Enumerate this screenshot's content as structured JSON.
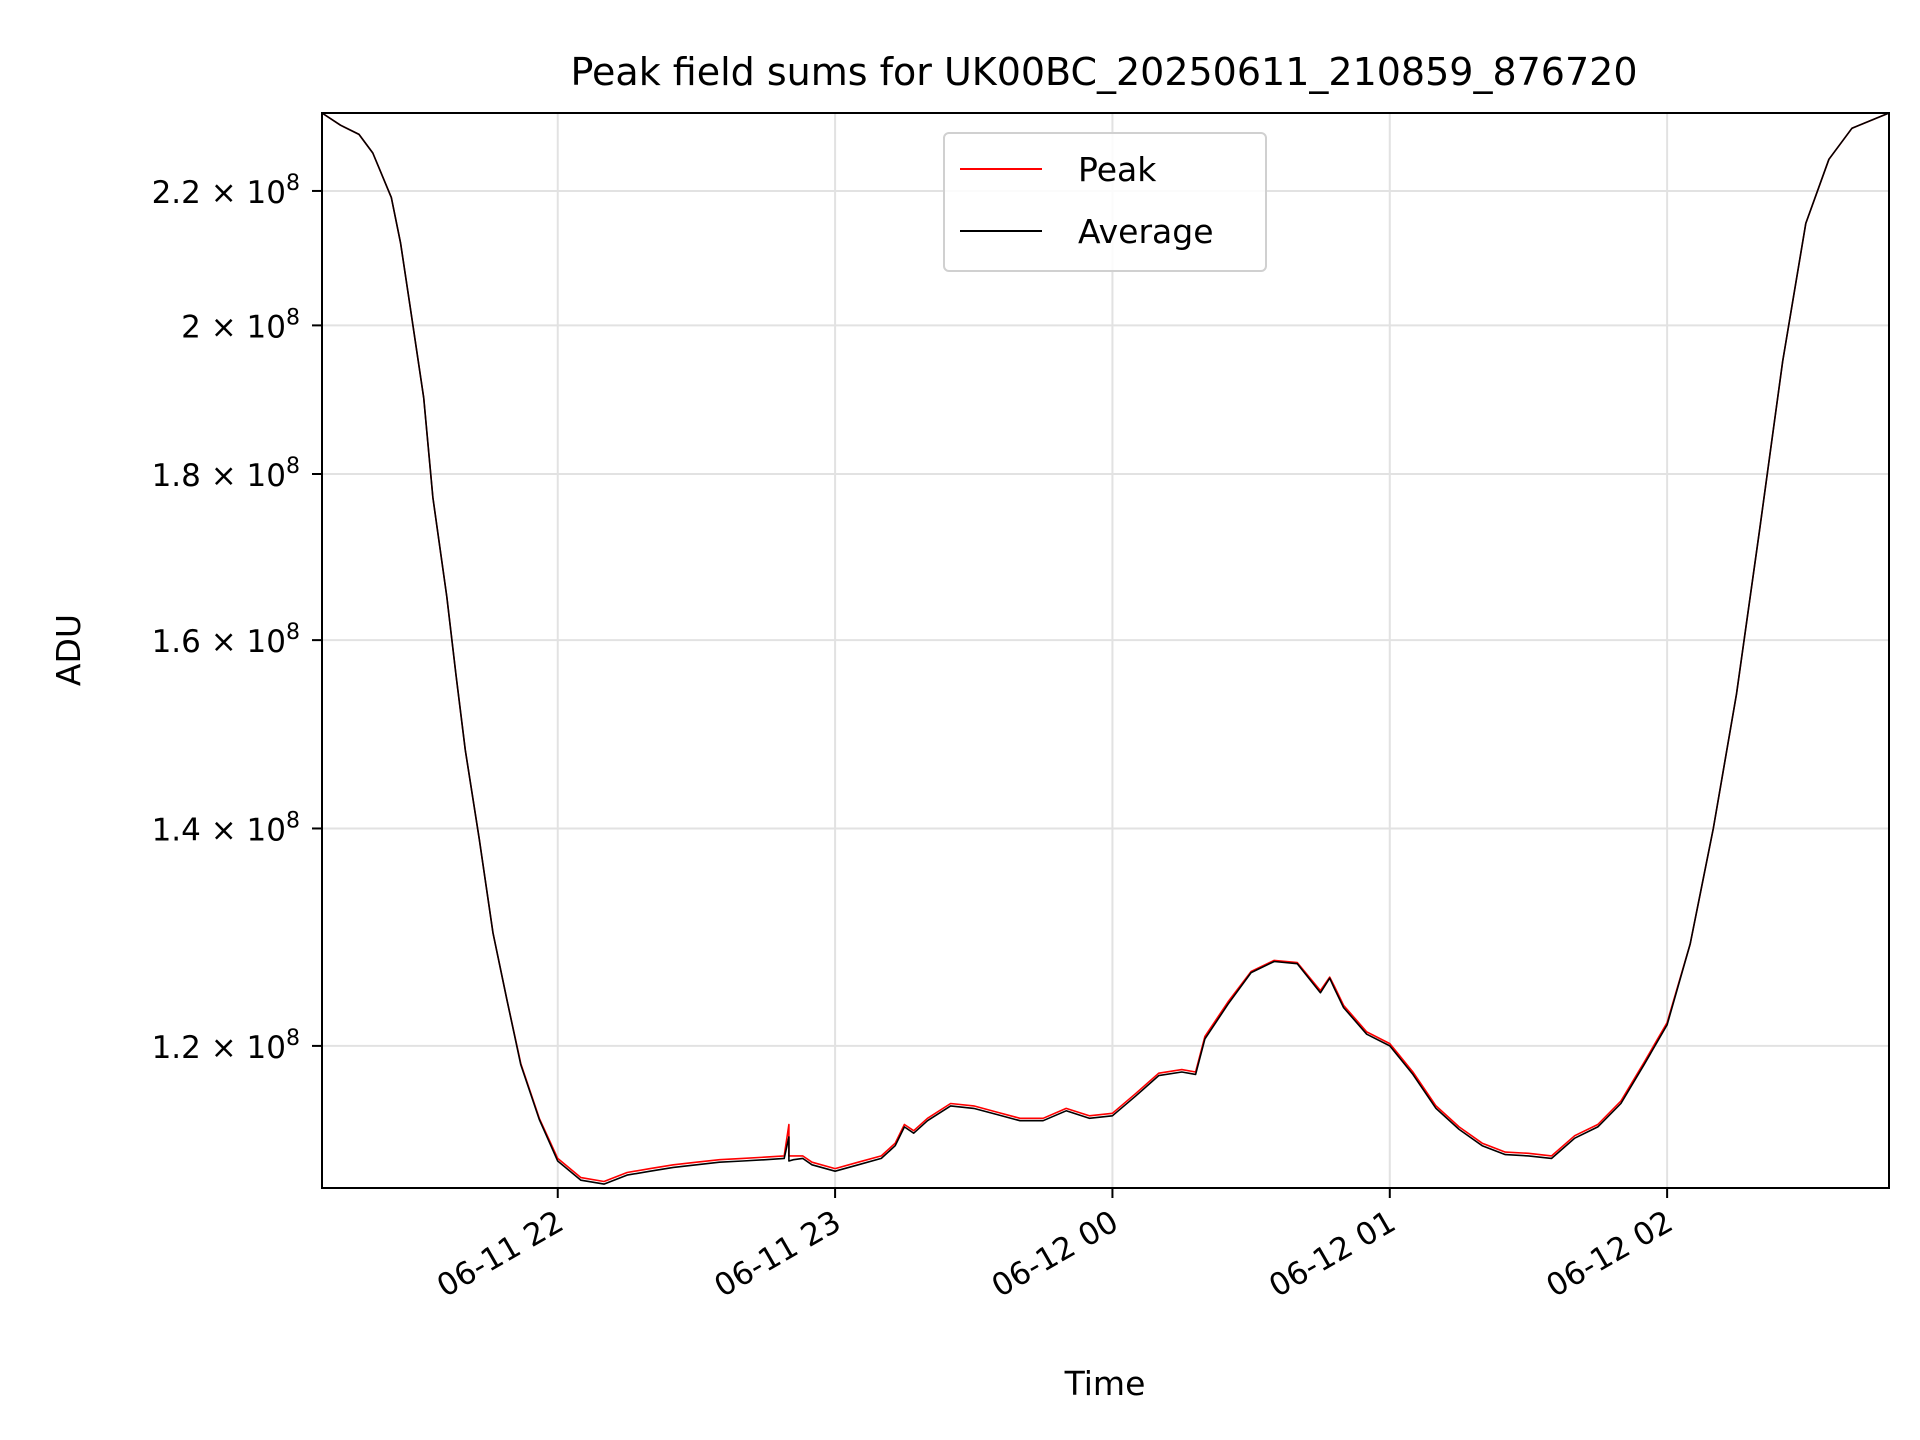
{
  "chart_data": {
    "type": "line",
    "title": "Peak field sums for UK00BC_20250611_210859_876720",
    "xlabel": "Time",
    "ylabel": "ADU",
    "y_scale": "log",
    "ylim": [
      108500000,
      232500000
    ],
    "xlim": [
      "2025-06-11 21:09",
      "2025-06-12 02:48"
    ],
    "x_ticks": [
      "2025-06-11 22:00",
      "2025-06-11 23:00",
      "2025-06-12 00:00",
      "2025-06-12 01:00",
      "2025-06-12 02:00"
    ],
    "x_tick_labels": [
      "06-11 22",
      "06-11 23",
      "06-12 00",
      "06-12 01",
      "06-12 02"
    ],
    "y_ticks": [
      120000000,
      140000000,
      160000000,
      180000000,
      200000000,
      220000000
    ],
    "y_tick_labels": [
      {
        "mantissa": "1.2",
        "exp": "8"
      },
      {
        "mantissa": "1.4",
        "exp": "8"
      },
      {
        "mantissa": "1.6",
        "exp": "8"
      },
      {
        "mantissa": "1.8",
        "exp": "8"
      },
      {
        "mantissa": "2",
        "exp": "8"
      },
      {
        "mantissa": "2.2",
        "exp": "8"
      }
    ],
    "times_label": "× 10",
    "grid": true,
    "legend_position": "upper center",
    "series": [
      {
        "name": "Peak",
        "color": "#ff0000",
        "x": [
          "2025-06-11 21:09",
          "2025-06-11 21:13",
          "2025-06-11 21:17",
          "2025-06-11 21:20",
          "2025-06-11 21:24",
          "2025-06-11 21:26",
          "2025-06-11 21:28",
          "2025-06-11 21:31",
          "2025-06-11 21:33",
          "2025-06-11 21:36",
          "2025-06-11 21:38",
          "2025-06-11 21:40",
          "2025-06-11 21:43",
          "2025-06-11 21:46",
          "2025-06-11 21:49",
          "2025-06-11 21:52",
          "2025-06-11 21:56",
          "2025-06-11 22:00",
          "2025-06-11 22:05",
          "2025-06-11 22:10",
          "2025-06-11 22:15",
          "2025-06-11 22:20",
          "2025-06-11 22:25",
          "2025-06-11 22:30",
          "2025-06-11 22:35",
          "2025-06-11 22:40",
          "2025-06-11 22:45",
          "2025-06-11 22:49",
          "2025-06-11 22:50",
          "2025-06-11 22:50",
          "2025-06-11 22:51",
          "2025-06-11 22:53",
          "2025-06-11 22:55",
          "2025-06-11 23:00",
          "2025-06-11 23:05",
          "2025-06-11 23:10",
          "2025-06-11 23:13",
          "2025-06-11 23:15",
          "2025-06-11 23:17",
          "2025-06-11 23:20",
          "2025-06-11 23:25",
          "2025-06-11 23:30",
          "2025-06-11 23:35",
          "2025-06-11 23:40",
          "2025-06-11 23:45",
          "2025-06-11 23:50",
          "2025-06-11 23:55",
          "2025-06-12 00:00",
          "2025-06-12 00:05",
          "2025-06-12 00:10",
          "2025-06-12 00:15",
          "2025-06-12 00:18",
          "2025-06-12 00:20",
          "2025-06-12 00:25",
          "2025-06-12 00:30",
          "2025-06-12 00:35",
          "2025-06-12 00:40",
          "2025-06-12 00:45",
          "2025-06-12 00:47",
          "2025-06-12 00:48",
          "2025-06-12 00:50",
          "2025-06-12 00:55",
          "2025-06-12 01:00",
          "2025-06-12 01:05",
          "2025-06-12 01:10",
          "2025-06-12 01:15",
          "2025-06-12 01:20",
          "2025-06-12 01:25",
          "2025-06-12 01:30",
          "2025-06-12 01:35",
          "2025-06-12 01:40",
          "2025-06-12 01:45",
          "2025-06-12 01:50",
          "2025-06-12 01:55",
          "2025-06-12 02:00",
          "2025-06-12 02:05",
          "2025-06-12 02:10",
          "2025-06-12 02:15",
          "2025-06-12 02:20",
          "2025-06-12 02:25",
          "2025-06-12 02:30",
          "2025-06-12 02:35",
          "2025-06-12 02:40",
          "2025-06-12 02:48"
        ],
        "y": [
          232500000,
          230500000,
          229000000,
          226000000,
          219000000,
          212000000,
          203000000,
          190000000,
          177000000,
          165000000,
          156000000,
          148000000,
          139000000,
          130000000,
          124000000,
          118500000,
          114000000,
          110800000,
          109300000,
          109000000,
          109700000,
          110000000,
          110300000,
          110500000,
          110700000,
          110800000,
          110900000,
          111000000,
          113500000,
          111000000,
          111000000,
          111000000,
          110500000,
          110000000,
          110500000,
          111000000,
          112000000,
          113500000,
          113000000,
          114000000,
          115200000,
          115000000,
          114500000,
          114000000,
          114000000,
          114800000,
          114200000,
          114400000,
          116000000,
          117700000,
          118000000,
          117800000,
          120800000,
          123800000,
          126500000,
          127500000,
          127300000,
          124800000,
          126000000,
          125200000,
          123500000,
          121200000,
          120200000,
          117800000,
          115000000,
          113300000,
          112000000,
          111300000,
          111200000,
          111000000,
          112600000,
          113500000,
          115400000,
          118600000,
          122000000,
          129000000,
          140000000,
          154000000,
          173000000,
          195000000,
          215000000,
          225000000,
          230000000,
          232500000
        ]
      },
      {
        "name": "Average",
        "color": "#000000",
        "x": [
          "2025-06-11 21:09",
          "2025-06-11 21:13",
          "2025-06-11 21:17",
          "2025-06-11 21:20",
          "2025-06-11 21:24",
          "2025-06-11 21:26",
          "2025-06-11 21:28",
          "2025-06-11 21:31",
          "2025-06-11 21:33",
          "2025-06-11 21:36",
          "2025-06-11 21:38",
          "2025-06-11 21:40",
          "2025-06-11 21:43",
          "2025-06-11 21:46",
          "2025-06-11 21:49",
          "2025-06-11 21:52",
          "2025-06-11 21:56",
          "2025-06-11 22:00",
          "2025-06-11 22:05",
          "2025-06-11 22:10",
          "2025-06-11 22:15",
          "2025-06-11 22:20",
          "2025-06-11 22:25",
          "2025-06-11 22:30",
          "2025-06-11 22:35",
          "2025-06-11 22:40",
          "2025-06-11 22:45",
          "2025-06-11 22:49",
          "2025-06-11 22:50",
          "2025-06-11 22:50",
          "2025-06-11 22:51",
          "2025-06-11 22:53",
          "2025-06-11 22:55",
          "2025-06-11 23:00",
          "2025-06-11 23:05",
          "2025-06-11 23:10",
          "2025-06-11 23:13",
          "2025-06-11 23:15",
          "2025-06-11 23:17",
          "2025-06-11 23:20",
          "2025-06-11 23:25",
          "2025-06-11 23:30",
          "2025-06-11 23:35",
          "2025-06-11 23:40",
          "2025-06-11 23:45",
          "2025-06-11 23:50",
          "2025-06-11 23:55",
          "2025-06-12 00:00",
          "2025-06-12 00:05",
          "2025-06-12 00:10",
          "2025-06-12 00:15",
          "2025-06-12 00:18",
          "2025-06-12 00:20",
          "2025-06-12 00:25",
          "2025-06-12 00:30",
          "2025-06-12 00:35",
          "2025-06-12 00:40",
          "2025-06-12 00:45",
          "2025-06-12 00:47",
          "2025-06-12 00:48",
          "2025-06-12 00:50",
          "2025-06-12 00:55",
          "2025-06-12 01:00",
          "2025-06-12 01:05",
          "2025-06-12 01:10",
          "2025-06-12 01:15",
          "2025-06-12 01:20",
          "2025-06-12 01:25",
          "2025-06-12 01:30",
          "2025-06-12 01:35",
          "2025-06-12 01:40",
          "2025-06-12 01:45",
          "2025-06-12 01:50",
          "2025-06-12 01:55",
          "2025-06-12 02:00",
          "2025-06-12 02:05",
          "2025-06-12 02:10",
          "2025-06-12 02:15",
          "2025-06-12 02:20",
          "2025-06-12 02:25",
          "2025-06-12 02:30",
          "2025-06-12 02:35",
          "2025-06-12 02:40",
          "2025-06-12 02:48"
        ],
        "y": [
          232500000,
          230500000,
          229000000,
          226000000,
          219000000,
          212000000,
          203000000,
          190000000,
          177000000,
          165000000,
          156000000,
          148000000,
          139000000,
          130000000,
          124000000,
          118400000,
          113900000,
          110600000,
          109100000,
          108800000,
          109500000,
          109800000,
          110100000,
          110300000,
          110500000,
          110600000,
          110700000,
          110800000,
          112500000,
          110600000,
          110700000,
          110800000,
          110300000,
          109800000,
          110300000,
          110800000,
          111800000,
          113300000,
          112800000,
          113800000,
          115000000,
          114800000,
          114300000,
          113800000,
          113800000,
          114600000,
          114000000,
          114200000,
          115800000,
          117500000,
          117800000,
          117600000,
          120600000,
          123600000,
          126400000,
          127400000,
          127200000,
          124600000,
          125900000,
          125000000,
          123300000,
          121000000,
          120000000,
          117600000,
          114800000,
          113100000,
          111800000,
          111100000,
          111000000,
          110800000,
          112400000,
          113300000,
          115200000,
          118400000,
          121800000,
          129000000,
          140000000,
          154000000,
          173000000,
          195000000,
          215000000,
          225000000,
          230000000,
          232500000
        ]
      }
    ]
  }
}
